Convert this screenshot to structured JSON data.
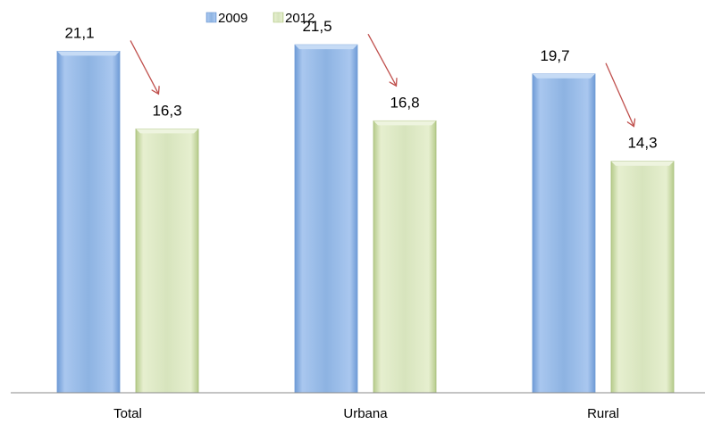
{
  "chart_data": {
    "type": "bar",
    "categories": [
      "Total",
      "Urbana",
      "Rural"
    ],
    "series": [
      {
        "name": "2009",
        "values": [
          21.1,
          21.5,
          19.7
        ],
        "labels": [
          "21,1",
          "21,5",
          "19,7"
        ],
        "color": "#8db3e2"
      },
      {
        "name": "2012",
        "values": [
          16.3,
          16.8,
          14.3
        ],
        "labels": [
          "16,3",
          "16,8",
          "14,3"
        ],
        "color": "#d7e4bd"
      }
    ],
    "title": "",
    "xlabel": "",
    "ylabel": "",
    "ylim": [
      0,
      22.5
    ],
    "grid": false,
    "legend": "top-center",
    "annotations": "red downward arrows from each 2009 bar to the 2012 bar",
    "arrow_color": "#c0504d"
  }
}
